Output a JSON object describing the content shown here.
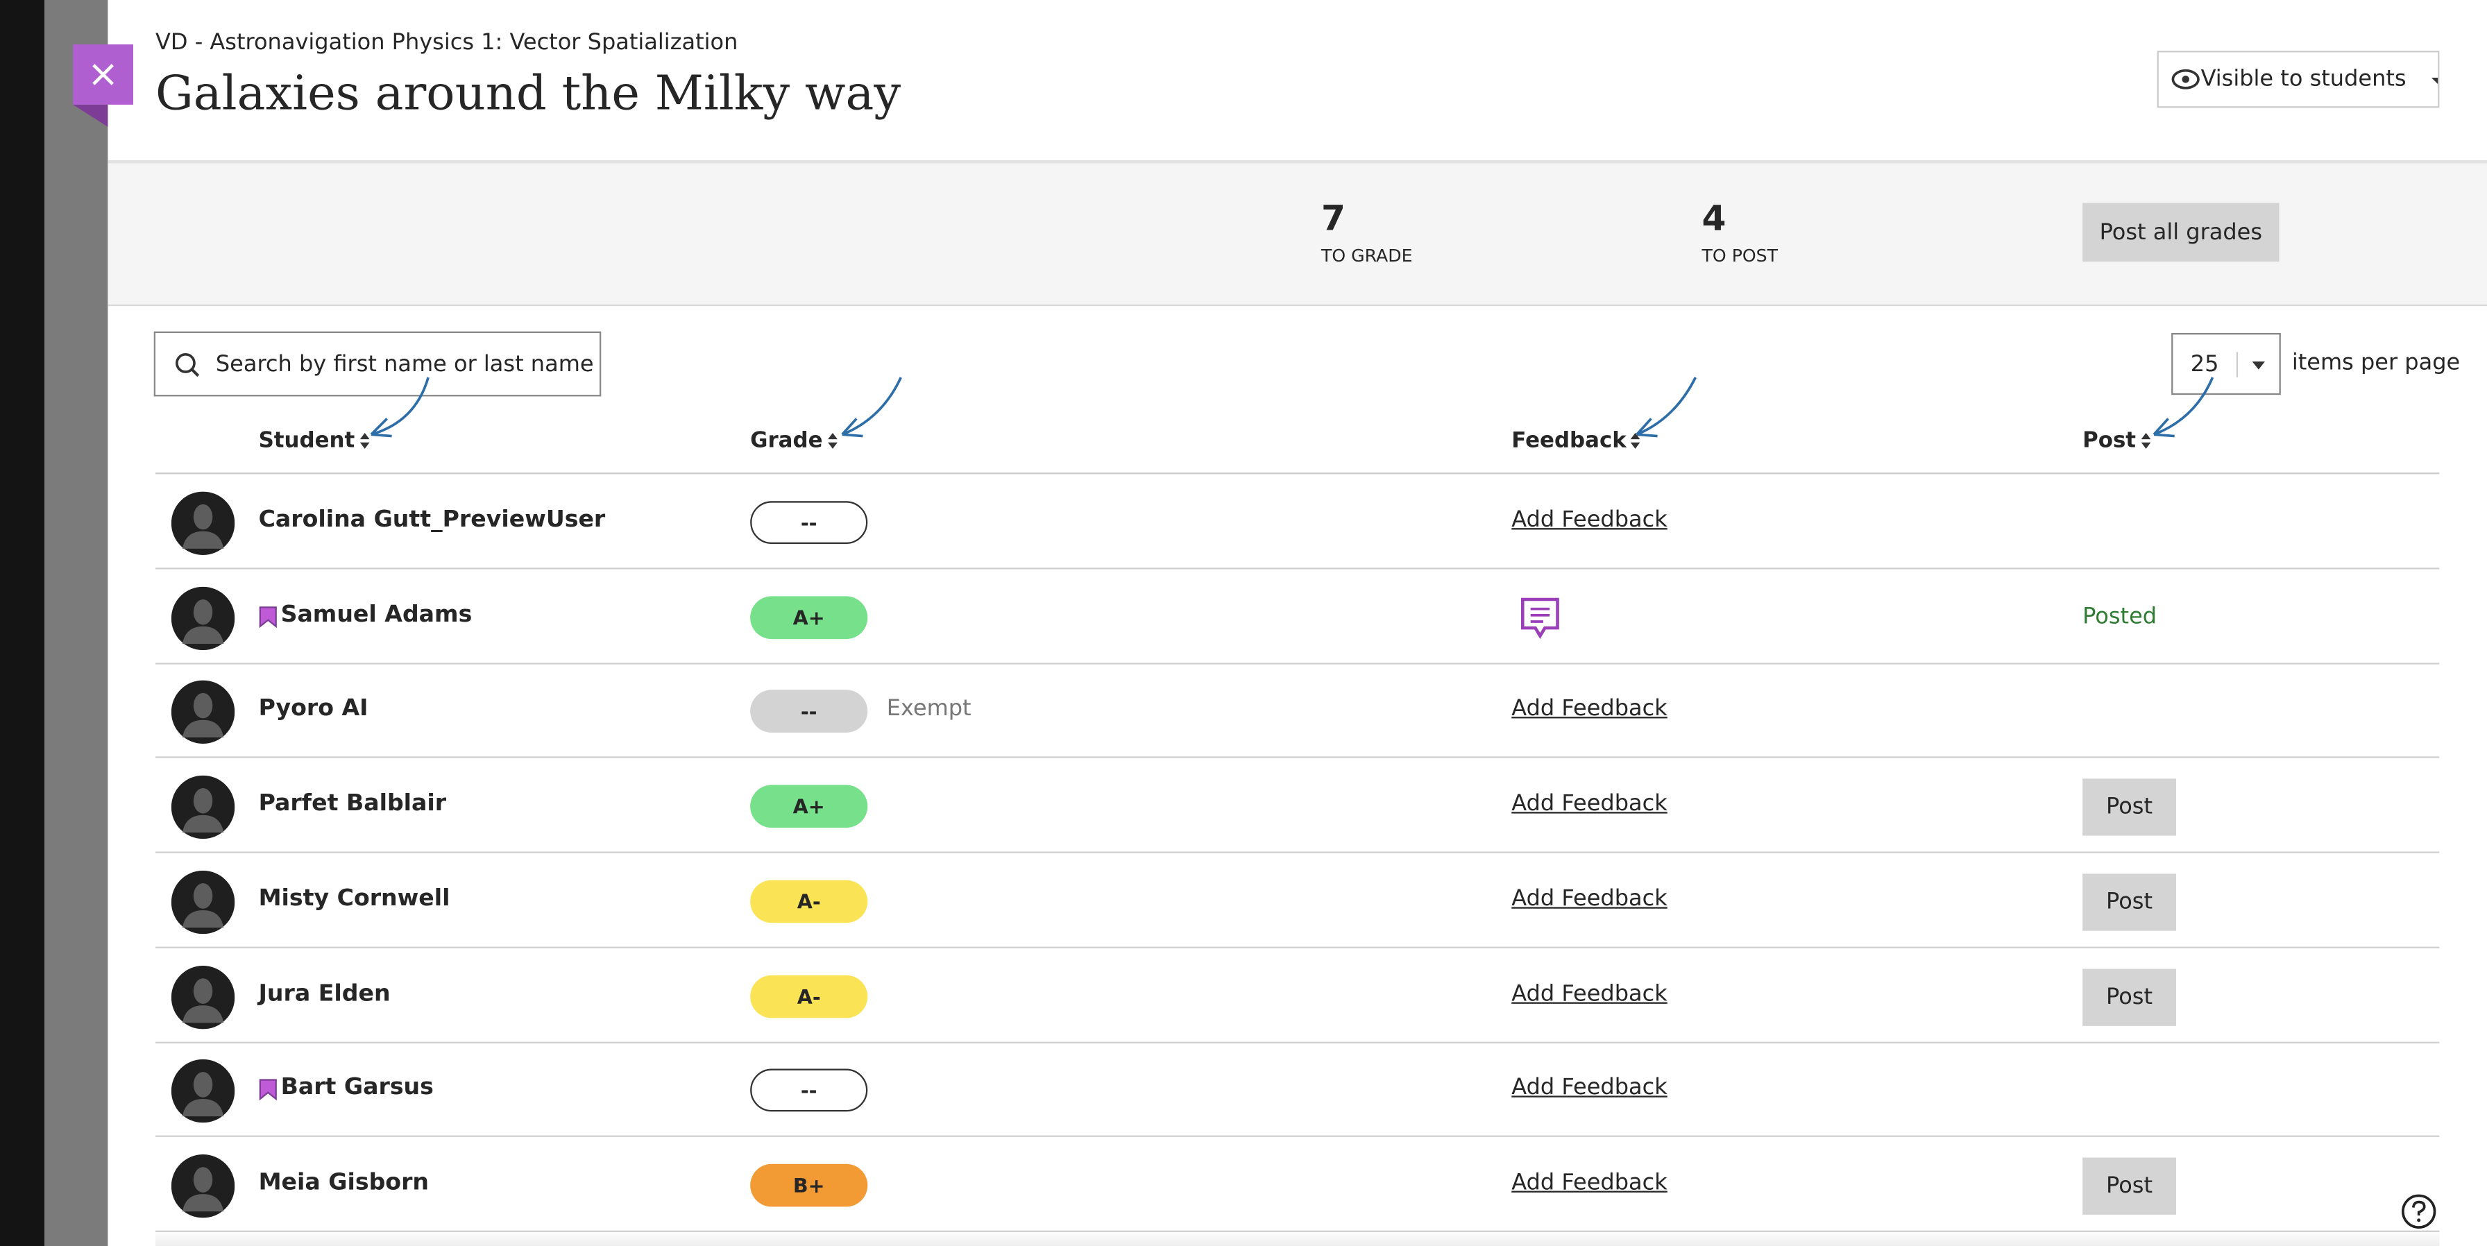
{
  "header": {
    "course": "VD - Astronavigation Physics 1: Vector Spatialization",
    "title": "Galaxies around the Milky way",
    "visibility": "Visible to students"
  },
  "stats": [
    {
      "value": "7",
      "label": "TO GRADE"
    },
    {
      "value": "4",
      "label": "TO POST"
    }
  ],
  "post_all": "Post all grades",
  "search_placeholder": "Search by first name or last name",
  "per_page": "25",
  "per_page_label": "items per page",
  "columns": [
    "Student",
    "Grade",
    "Feedback",
    "Post"
  ],
  "rows": [
    {
      "name": "Carolina Gutt_PreviewUser",
      "flag": false,
      "grade": "--",
      "grade_fill": "#ffffff",
      "feedback": "Add Feedback",
      "post": null
    },
    {
      "name": "Samuel Adams",
      "flag": true,
      "grade": "A+",
      "grade_fill": "#76e08a",
      "feedback": null,
      "post": "Posted"
    },
    {
      "name": "Pyoro AI",
      "flag": false,
      "grade": "--",
      "grade_fill": "#d3d3d3",
      "note": "Exempt",
      "feedback": "Add Feedback",
      "post": null
    },
    {
      "name": "Parfet Balblair",
      "flag": false,
      "grade": "A+",
      "grade_fill": "#76e08a",
      "feedback": "Add Feedback",
      "post": "Post"
    },
    {
      "name": "Misty Cornwell",
      "flag": false,
      "grade": "A-",
      "grade_fill": "#fae455",
      "feedback": "Add Feedback",
      "post": "Post"
    },
    {
      "name": "Jura Elden",
      "flag": false,
      "grade": "A-",
      "grade_fill": "#fae455",
      "feedback": "Add Feedback",
      "post": "Post"
    },
    {
      "name": "Bart Garsus",
      "flag": true,
      "grade": "--",
      "grade_fill": "#ffffff",
      "feedback": "Add Feedback",
      "post": null
    },
    {
      "name": "Meia Gisborn",
      "flag": false,
      "grade": "B+",
      "grade_fill": "#f29b35",
      "feedback": "Add Feedback",
      "post": "Post"
    }
  ]
}
